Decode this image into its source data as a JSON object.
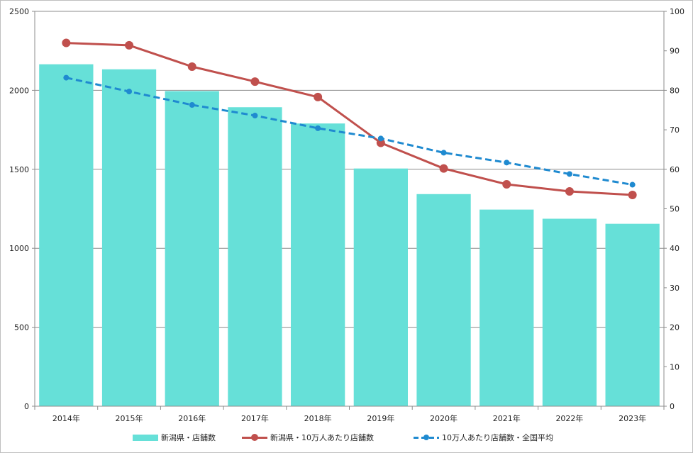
{
  "chart_data": {
    "type": "bar",
    "categories": [
      "2014年",
      "2015年",
      "2016年",
      "2017年",
      "2018年",
      "2019年",
      "2020年",
      "2021年",
      "2022年",
      "2023年"
    ],
    "series": [
      {
        "name": "新潟県・店舗数",
        "type": "bar",
        "axis": "left",
        "color": "#66e0d8",
        "values": [
          2165,
          2133,
          1995,
          1893,
          1790,
          1505,
          1343,
          1245,
          1187,
          1155
        ]
      },
      {
        "name": "新潟県・10万人あたり店舗数",
        "type": "line",
        "axis": "right",
        "color": "#c0504d",
        "style": "solid",
        "values": [
          92.0,
          91.4,
          86.0,
          82.2,
          78.3,
          66.7,
          60.2,
          56.2,
          54.4,
          53.5
        ]
      },
      {
        "name": "10万人あたり店舗数・全国平均",
        "type": "line",
        "axis": "right",
        "color": "#1f8ad0",
        "style": "dashed",
        "values": [
          83.2,
          79.7,
          76.3,
          73.6,
          70.4,
          67.8,
          64.2,
          61.7,
          58.8,
          56.1
        ]
      }
    ],
    "y_left": {
      "lim": [
        0,
        2500
      ],
      "ticks": [
        "0",
        "500",
        "1000",
        "1500",
        "2000",
        "2500"
      ]
    },
    "y_right": {
      "lim": [
        0,
        100
      ],
      "ticks": [
        "0",
        "10",
        "20",
        "30",
        "40",
        "50",
        "60",
        "70",
        "80",
        "90",
        "100"
      ]
    },
    "grid": true,
    "legend_position": "bottom"
  }
}
